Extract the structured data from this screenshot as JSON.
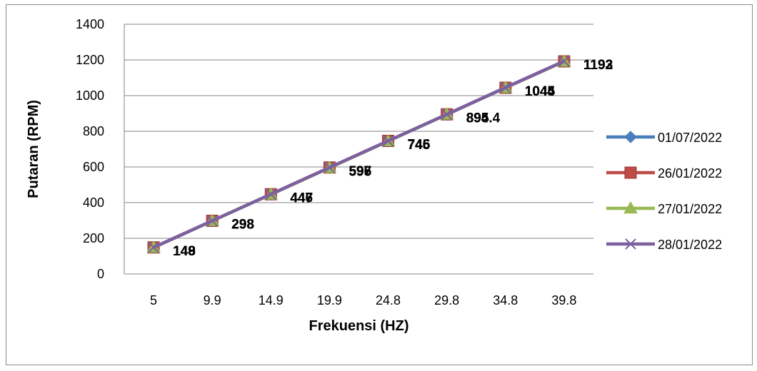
{
  "chart_data": {
    "type": "line",
    "title": "",
    "xlabel": "Frekuensi (HZ)",
    "ylabel": "Putaran (RPM)",
    "categories": [
      "5",
      "9.9",
      "14.9",
      "19.9",
      "24.8",
      "29.8",
      "34.8",
      "39.8"
    ],
    "ylim": [
      0,
      1400
    ],
    "yticks": [
      0,
      200,
      400,
      600,
      800,
      1000,
      1200,
      1400
    ],
    "grid": "horizontal",
    "legend_position": "right",
    "series": [
      {
        "name": "01/07/2022",
        "color": "#4a7ebb",
        "marker": "diamond",
        "values": [
          148,
          298,
          447,
          596,
          745,
          894,
          1045,
          1193
        ],
        "labels": [
          "148",
          "298",
          "447",
          "596",
          "745",
          "894",
          "1045",
          "1193"
        ]
      },
      {
        "name": "26/01/2022",
        "color": "#be4b48",
        "marker": "square",
        "values": [
          149,
          298,
          447,
          597,
          746,
          895,
          1044,
          1192
        ],
        "labels": [
          "149",
          "298",
          "447",
          "597",
          "746",
          "895",
          "1044",
          "1192"
        ]
      },
      {
        "name": "27/01/2022",
        "color": "#98b954",
        "marker": "triangle",
        "values": [
          148,
          298,
          446,
          595,
          745,
          894.4,
          1044,
          1192
        ],
        "labels": [
          "148",
          "298",
          "446",
          "595",
          "745",
          "894.4",
          "1044",
          "1192"
        ]
      },
      {
        "name": "28/01/2022",
        "color": "#7d60a0",
        "marker": "x",
        "values": [
          149,
          298,
          447,
          597,
          746,
          895,
          1045,
          1193
        ],
        "labels": [
          "149",
          "298",
          "447",
          "597",
          "746",
          "895",
          "1045",
          "1193"
        ]
      }
    ]
  }
}
